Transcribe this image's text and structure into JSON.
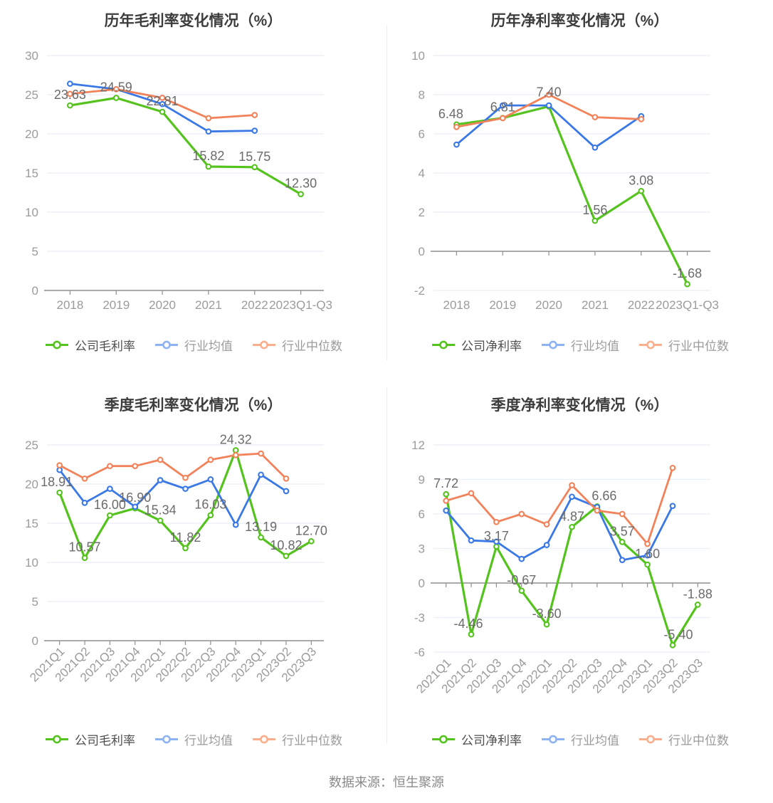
{
  "page": {
    "source_note": "数据来源：恒生聚源"
  },
  "colors": {
    "company": {
      "line": "#55c31e",
      "legend": "#55c31e",
      "legend_text": "#4d4d4d"
    },
    "industry_avg": {
      "line": "#3a78e6",
      "legend": "#8db3f3",
      "legend_text": "#9b9b9b"
    },
    "industry_median": {
      "line": "#f2825a",
      "legend": "#fbae8c",
      "legend_text": "#9b9b9b"
    },
    "grid_line": "#e9eef7",
    "axis_line": "#8f8f8f",
    "tick_text": "#9b9b9b",
    "data_label": "#6b6b6b"
  },
  "chart_data": [
    {
      "type": "line",
      "title": "历年毛利率变化情况（%）",
      "categories": [
        "2018",
        "2019",
        "2020",
        "2021",
        "2022",
        "2023Q1-Q3"
      ],
      "yticks": [
        0,
        5,
        10,
        15,
        20,
        25,
        30
      ],
      "ylim": [
        0,
        30
      ],
      "grid": true,
      "legend_position": "bottom",
      "rotate_x_labels": false,
      "series": [
        {
          "name": "公司毛利率",
          "role": "company",
          "show_labels": true,
          "values": [
            23.63,
            24.59,
            22.81,
            15.82,
            15.75,
            12.3
          ]
        },
        {
          "name": "行业均值",
          "role": "industry_avg",
          "values": [
            26.4,
            25.7,
            23.8,
            20.3,
            20.4
          ]
        },
        {
          "name": "行业中位数",
          "role": "industry_median",
          "values": [
            25.1,
            25.7,
            24.6,
            22.0,
            22.4
          ]
        }
      ],
      "label_offsets": {}
    },
    {
      "type": "line",
      "title": "历年净利率变化情况（%）",
      "categories": [
        "2018",
        "2019",
        "2020",
        "2021",
        "2022",
        "2023Q1-Q3"
      ],
      "yticks": [
        -2,
        0,
        2,
        4,
        6,
        8,
        10
      ],
      "ylim": [
        -2,
        10
      ],
      "grid": true,
      "legend_position": "bottom",
      "rotate_x_labels": false,
      "series": [
        {
          "name": "公司净利率",
          "role": "company",
          "show_labels": true,
          "values": [
            6.48,
            6.81,
            7.4,
            1.56,
            3.08,
            -1.68
          ]
        },
        {
          "name": "行业均值",
          "role": "industry_avg",
          "values": [
            5.45,
            7.45,
            7.45,
            5.3,
            6.9
          ]
        },
        {
          "name": "行业中位数",
          "role": "industry_median",
          "values": [
            6.35,
            6.8,
            8.0,
            6.85,
            6.75
          ]
        }
      ],
      "label_offsets": {
        "0": [
          -8,
          0
        ],
        "2": [
          0,
          -5
        ]
      }
    },
    {
      "type": "line",
      "title": "季度毛利率变化情况（%）",
      "categories": [
        "2021Q1",
        "2021Q2",
        "2021Q3",
        "2021Q4",
        "2022Q1",
        "2022Q2",
        "2022Q3",
        "2022Q4",
        "2023Q1",
        "2023Q2",
        "2023Q3"
      ],
      "yticks": [
        0,
        5,
        10,
        15,
        20,
        25
      ],
      "ylim": [
        0,
        25
      ],
      "grid": true,
      "legend_position": "bottom",
      "rotate_x_labels": true,
      "series": [
        {
          "name": "公司毛利率",
          "role": "company",
          "show_labels": true,
          "values": [
            18.91,
            10.57,
            16.0,
            16.9,
            15.34,
            11.82,
            16.03,
            24.32,
            13.19,
            10.82,
            12.7
          ]
        },
        {
          "name": "行业均值",
          "role": "industry_avg",
          "values": [
            21.8,
            17.6,
            19.4,
            17.1,
            20.5,
            19.4,
            20.6,
            14.8,
            21.2,
            19.1
          ]
        },
        {
          "name": "行业中位数",
          "role": "industry_median",
          "values": [
            22.4,
            20.7,
            22.3,
            22.3,
            23.1,
            20.8,
            23.1,
            23.7,
            23.9,
            20.7
          ]
        }
      ],
      "label_offsets": {
        "0": [
          -4,
          0
        ]
      }
    },
    {
      "type": "line",
      "title": "季度净利率变化情况（%）",
      "categories": [
        "2021Q1",
        "2021Q2",
        "2021Q3",
        "2021Q4",
        "2022Q1",
        "2022Q2",
        "2022Q3",
        "2022Q4",
        "2023Q1",
        "2023Q2",
        "2023Q3"
      ],
      "yticks": [
        -6,
        -3,
        0,
        3,
        6,
        9,
        12
      ],
      "ylim": [
        -6,
        12
      ],
      "grid": true,
      "legend_position": "bottom",
      "rotate_x_labels": true,
      "series": [
        {
          "name": "公司净利率",
          "role": "company",
          "show_labels": true,
          "values": [
            7.72,
            -4.46,
            3.17,
            -0.67,
            -3.6,
            4.87,
            6.66,
            3.57,
            1.6,
            -5.4,
            -1.88
          ]
        },
        {
          "name": "行业均值",
          "role": "industry_avg",
          "values": [
            6.3,
            3.7,
            3.6,
            2.1,
            3.3,
            7.5,
            6.6,
            2.0,
            2.4,
            6.7
          ]
        },
        {
          "name": "行业中位数",
          "role": "industry_median",
          "values": [
            7.15,
            7.8,
            5.3,
            6.0,
            5.1,
            8.5,
            6.3,
            6.0,
            3.4,
            10.0
          ]
        }
      ],
      "label_offsets": {
        "1": [
          -4,
          0
        ],
        "6": [
          10,
          0
        ],
        "9": [
          8,
          0
        ]
      }
    }
  ]
}
